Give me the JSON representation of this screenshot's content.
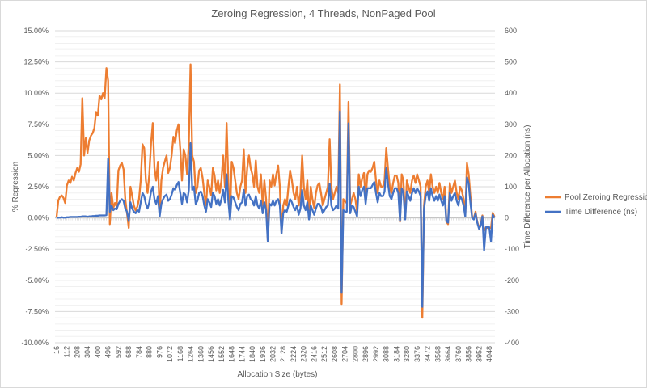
{
  "chart_data": {
    "type": "line",
    "title": "Zeroing Regression, 4 Threads, NonPaged Pool",
    "xlabel": "Allocation Size (bytes)",
    "ylabel_left": "% Regression",
    "ylabel_right": "Time Difference per Allocation (ns)",
    "x_tick_labels": [
      "16",
      "112",
      "208",
      "304",
      "400",
      "496",
      "592",
      "688",
      "784",
      "880",
      "976",
      "1072",
      "1168",
      "1264",
      "1360",
      "1456",
      "1552",
      "1648",
      "1744",
      "1840",
      "1936",
      "2032",
      "2128",
      "2224",
      "2320",
      "2416",
      "2512",
      "2608",
      "2704",
      "2800",
      "2896",
      "2992",
      "3088",
      "3184",
      "3280",
      "3376",
      "3472",
      "3568",
      "3664",
      "3760",
      "3856",
      "3952",
      "4048"
    ],
    "x_range": [
      16,
      4096
    ],
    "x_step": 16,
    "ylim_left": [
      -10,
      15
    ],
    "yticks_left": [
      "15.00%",
      "12.50%",
      "10.00%",
      "7.50%",
      "5.00%",
      "2.50%",
      "0.00%",
      "-2.50%",
      "-5.00%",
      "-7.50%",
      "-10.00%"
    ],
    "ylim_right": [
      -400,
      600
    ],
    "yticks_right": [
      "600",
      "500",
      "400",
      "300",
      "200",
      "100",
      "0",
      "-100",
      "-200",
      "-300",
      "-400"
    ],
    "grid": true,
    "legend_position": "right",
    "series": [
      {
        "name": "Pool Zeroing Regression",
        "axis": "left",
        "unit": "%",
        "color": "#ED7D31",
        "values": [
          0.1,
          1.4,
          1.7,
          1.8,
          1.6,
          1.2,
          2.6,
          3.0,
          2.8,
          3.3,
          3.0,
          3.6,
          4.0,
          3.7,
          4.3,
          9.6,
          5.0,
          6.4,
          5.2,
          6.2,
          6.6,
          6.8,
          7.2,
          8.5,
          8.2,
          9.8,
          9.5,
          10.0,
          9.6,
          12.0,
          11.0,
          -0.5,
          2.0,
          0.8,
          1.2,
          0.9,
          3.8,
          4.2,
          4.4,
          3.9,
          1.5,
          0.4,
          -0.8,
          2.5,
          1.8,
          1.0,
          0.6,
          0.9,
          1.5,
          3.0,
          5.9,
          5.6,
          3.0,
          2.0,
          3.5,
          6.0,
          7.6,
          4.0,
          3.0,
          4.5,
          0.2,
          3.0,
          4.0,
          4.5,
          5.0,
          3.6,
          4.0,
          5.0,
          6.5,
          6.0,
          7.0,
          7.5,
          5.5,
          3.0,
          5.5,
          5.0,
          3.5,
          6.0,
          12.3,
          5.0,
          4.5,
          2.0,
          2.5,
          3.8,
          4.0,
          3.2,
          2.0,
          1.0,
          3.0,
          2.5,
          1.8,
          4.0,
          3.4,
          2.2,
          3.0,
          2.0,
          3.0,
          5.0,
          2.5,
          7.6,
          3.0,
          0.0,
          4.5,
          4.0,
          3.0,
          2.0,
          1.5,
          2.5,
          3.0,
          5.5,
          2.0,
          4.0,
          5.0,
          4.0,
          3.5,
          2.5,
          4.6,
          2.5,
          2.0,
          3.5,
          1.0,
          3.0,
          1.5,
          -1.8,
          3.0,
          2.5,
          3.5,
          2.6,
          3.5,
          4.2,
          2.5,
          -1.2,
          1.0,
          1.5,
          1.0,
          2.5,
          3.8,
          3.0,
          2.0,
          1.5,
          2.5,
          1.0,
          2.0,
          5.0,
          2.5,
          1.5,
          3.0,
          0.0,
          2.5,
          1.5,
          0.8,
          2.0,
          2.6,
          2.8,
          2.0,
          1.0,
          1.5,
          2.0,
          2.5,
          6.3,
          2.5,
          1.5,
          2.0,
          2.5,
          2.0,
          10.7,
          -6.9,
          1.5,
          1.3,
          1.2,
          9.3,
          1.0,
          1.5,
          2.0,
          1.5,
          0.5,
          3.5,
          2.5,
          3.2,
          3.6,
          1.5,
          3.5,
          3.8,
          3.7,
          4.0,
          4.5,
          3.0,
          2.0,
          3.0,
          2.5,
          2.5,
          3.0,
          5.6,
          4.0,
          2.5,
          2.0,
          2.8,
          3.4,
          3.4,
          2.8,
          -0.3,
          3.5,
          3.0,
          -0.1,
          3.0,
          2.5,
          2.0,
          3.0,
          3.4,
          2.8,
          3.5,
          3.0,
          2.5,
          -8.0,
          1.0,
          2.5,
          3.0,
          2.0,
          3.5,
          2.5,
          2.0,
          2.5,
          2.0,
          2.8,
          2.0,
          1.5,
          2.5,
          -0.3,
          -0.5,
          2.8,
          2.0,
          2.5,
          3.0,
          2.0,
          1.5,
          2.5,
          2.2,
          1.5,
          0.2,
          4.4,
          3.5,
          1.8,
          0.0,
          0.0,
          0.5,
          -0.3,
          -0.8,
          -0.5,
          0.2,
          -1.0,
          -0.8,
          -0.8,
          -0.8,
          -0.8,
          0.4,
          0.1
        ]
      },
      {
        "name": "Time Difference (ns)",
        "axis": "right",
        "unit": "ns",
        "color": "#4472C4",
        "values": [
          0,
          1,
          1,
          2,
          1,
          1,
          2,
          2,
          3,
          3,
          3,
          3,
          3,
          4,
          4,
          5,
          5,
          5,
          4,
          5,
          5,
          6,
          6,
          7,
          7,
          8,
          8,
          8,
          8,
          9,
          190,
          20,
          40,
          25,
          30,
          28,
          45,
          55,
          60,
          55,
          30,
          20,
          -10,
          50,
          30,
          20,
          15,
          25,
          20,
          50,
          80,
          70,
          45,
          30,
          50,
          85,
          100,
          60,
          45,
          70,
          5,
          45,
          60,
          70,
          75,
          55,
          60,
          75,
          95,
          90,
          105,
          115,
          80,
          45,
          80,
          75,
          50,
          90,
          240,
          90,
          100,
          45,
          55,
          80,
          85,
          70,
          40,
          20,
          60,
          50,
          35,
          80,
          70,
          45,
          60,
          40,
          60,
          90,
          50,
          140,
          55,
          -5,
          70,
          65,
          50,
          35,
          25,
          45,
          50,
          90,
          40,
          70,
          75,
          60,
          55,
          40,
          70,
          40,
          30,
          55,
          15,
          50,
          25,
          -75,
          45,
          40,
          55,
          40,
          55,
          60,
          40,
          -50,
          15,
          25,
          20,
          40,
          60,
          50,
          35,
          25,
          40,
          10,
          30,
          90,
          40,
          25,
          50,
          -5,
          40,
          25,
          10,
          30,
          45,
          45,
          35,
          15,
          25,
          35,
          40,
          110,
          40,
          25,
          30,
          40,
          30,
          342,
          -240,
          25,
          20,
          20,
          303,
          15,
          40,
          35,
          20,
          5,
          100,
          70,
          90,
          100,
          45,
          95,
          95,
          95,
          105,
          115,
          80,
          50,
          80,
          70,
          70,
          85,
          160,
          110,
          70,
          60,
          80,
          95,
          95,
          80,
          -10,
          95,
          80,
          -5,
          85,
          70,
          55,
          80,
          95,
          80,
          95,
          85,
          70,
          -285,
          30,
          70,
          85,
          55,
          95,
          70,
          55,
          70,
          55,
          75,
          55,
          40,
          70,
          -10,
          -15,
          80,
          55,
          70,
          80,
          55,
          40,
          70,
          60,
          40,
          5,
          130,
          110,
          50,
          0,
          -5,
          15,
          -15,
          -35,
          -25,
          5,
          -105,
          -30,
          -30,
          -30,
          -75,
          10,
          0
        ]
      }
    ]
  }
}
